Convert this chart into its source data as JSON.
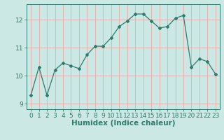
{
  "x": [
    0,
    1,
    2,
    3,
    4,
    5,
    6,
    7,
    8,
    9,
    10,
    11,
    12,
    13,
    14,
    15,
    16,
    17,
    18,
    19,
    20,
    21,
    22,
    23
  ],
  "y": [
    9.3,
    10.3,
    9.3,
    10.2,
    10.45,
    10.35,
    10.25,
    10.75,
    11.05,
    11.05,
    11.35,
    11.75,
    11.95,
    12.2,
    12.2,
    11.95,
    11.7,
    11.75,
    12.05,
    12.15,
    10.3,
    10.6,
    10.5,
    10.05
  ],
  "line_color": "#2e7b6e",
  "bg_color": "#cce8e4",
  "grid_color_v": "#e8a0a0",
  "grid_color_h": "#e8a0a0",
  "xlabel": "Humidex (Indice chaleur)",
  "ylim": [
    8.8,
    12.55
  ],
  "xlim": [
    -0.5,
    23.5
  ],
  "yticks": [
    9,
    10,
    11,
    12
  ],
  "xticks": [
    0,
    1,
    2,
    3,
    4,
    5,
    6,
    7,
    8,
    9,
    10,
    11,
    12,
    13,
    14,
    15,
    16,
    17,
    18,
    19,
    20,
    21,
    22,
    23
  ],
  "xlabel_fontsize": 7.5,
  "tick_fontsize": 6.5,
  "marker": "D",
  "marker_size": 2.0,
  "line_width": 0.9
}
